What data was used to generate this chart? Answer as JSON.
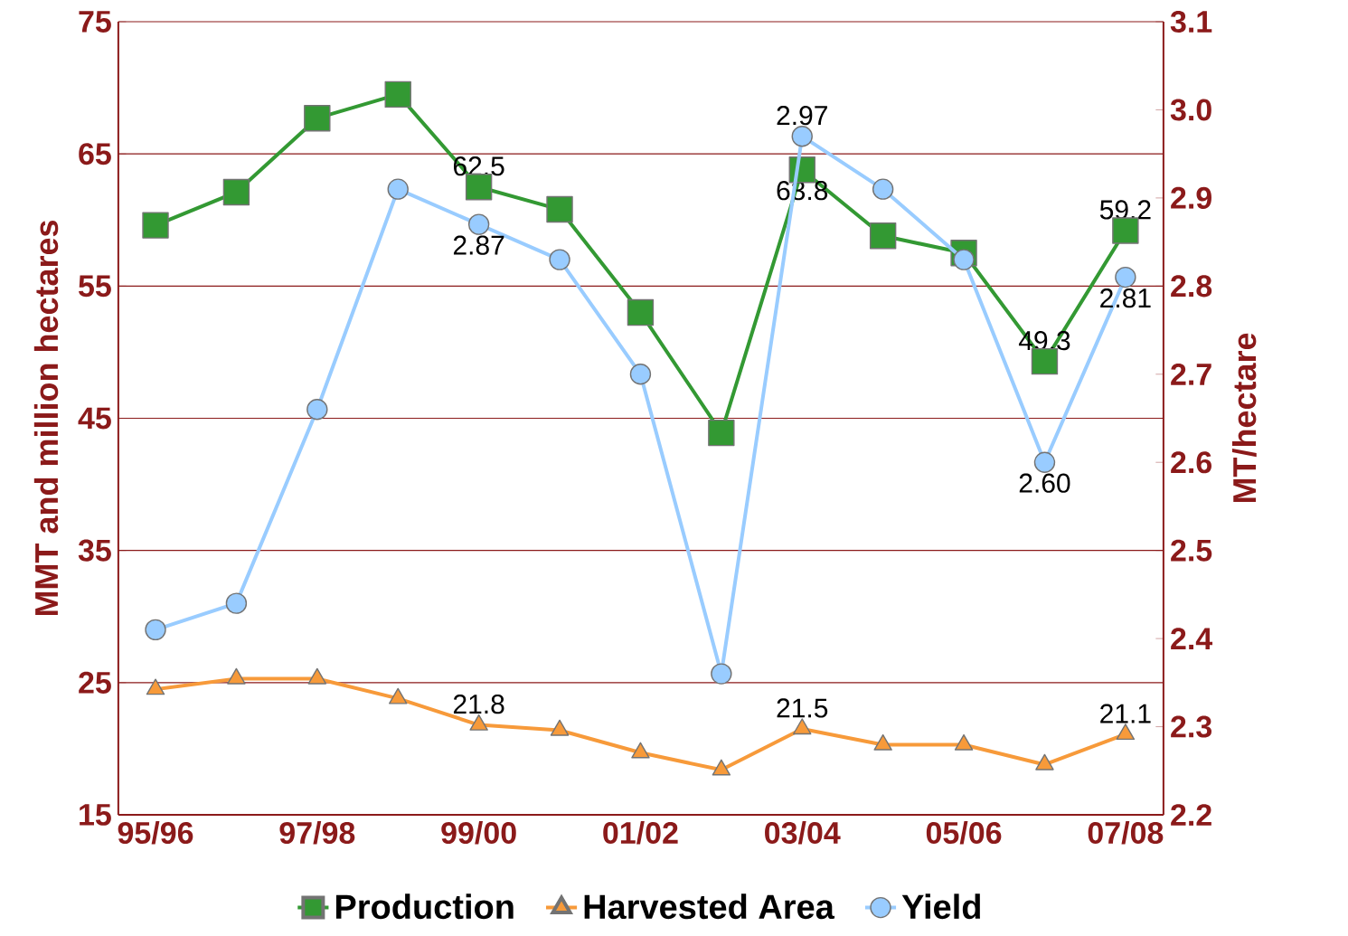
{
  "chart_data": {
    "type": "line",
    "categories": [
      "95/96",
      null,
      "97/98",
      null,
      "99/00",
      null,
      "01/02",
      null,
      "03/04",
      null,
      "05/06",
      null,
      "07/08"
    ],
    "ylabel": "MMT and million hectares",
    "y2label": "MT/hectare",
    "ylim": [
      15,
      75
    ],
    "yticks": [
      15,
      25,
      35,
      45,
      55,
      65,
      75
    ],
    "y2lim": [
      2.2,
      3.1
    ],
    "y2ticks": [
      2.2,
      2.3,
      2.4,
      2.5,
      2.6,
      2.7,
      2.8,
      2.9,
      {
        "value": 3.0,
        "label": "3.0"
      },
      3.1
    ],
    "grid": "y",
    "legend": "bottom",
    "series": [
      {
        "name": "Production",
        "color": "#339933",
        "marker": "square",
        "values": [
          59.6,
          62.1,
          67.7,
          69.5,
          62.5,
          60.8,
          53.0,
          43.9,
          63.8,
          58.8,
          57.5,
          49.3,
          59.2
        ],
        "value_labels": [
          null,
          null,
          null,
          null,
          "62.5",
          null,
          null,
          null,
          "63.8",
          null,
          null,
          "49.3",
          "59.2"
        ]
      },
      {
        "name": "Harvested Area",
        "color": "#f79a3a",
        "marker": "triangle",
        "values": [
          24.5,
          25.3,
          25.3,
          23.8,
          21.8,
          21.4,
          19.7,
          18.4,
          21.5,
          20.3,
          20.3,
          18.8,
          21.1
        ],
        "value_labels": [
          null,
          null,
          null,
          null,
          "21.8",
          null,
          null,
          null,
          "21.5",
          null,
          null,
          null,
          "21.1"
        ]
      },
      {
        "name": "Yield",
        "color": "#99ccff",
        "marker": "circle",
        "axis": "y2",
        "values": [
          2.41,
          2.44,
          2.66,
          2.91,
          2.87,
          2.83,
          2.7,
          2.36,
          2.97,
          2.91,
          2.83,
          2.6,
          2.81
        ],
        "value_labels": [
          null,
          null,
          null,
          null,
          "2.87",
          null,
          null,
          null,
          "2.97",
          null,
          null,
          "2.60",
          "2.81"
        ]
      }
    ]
  }
}
